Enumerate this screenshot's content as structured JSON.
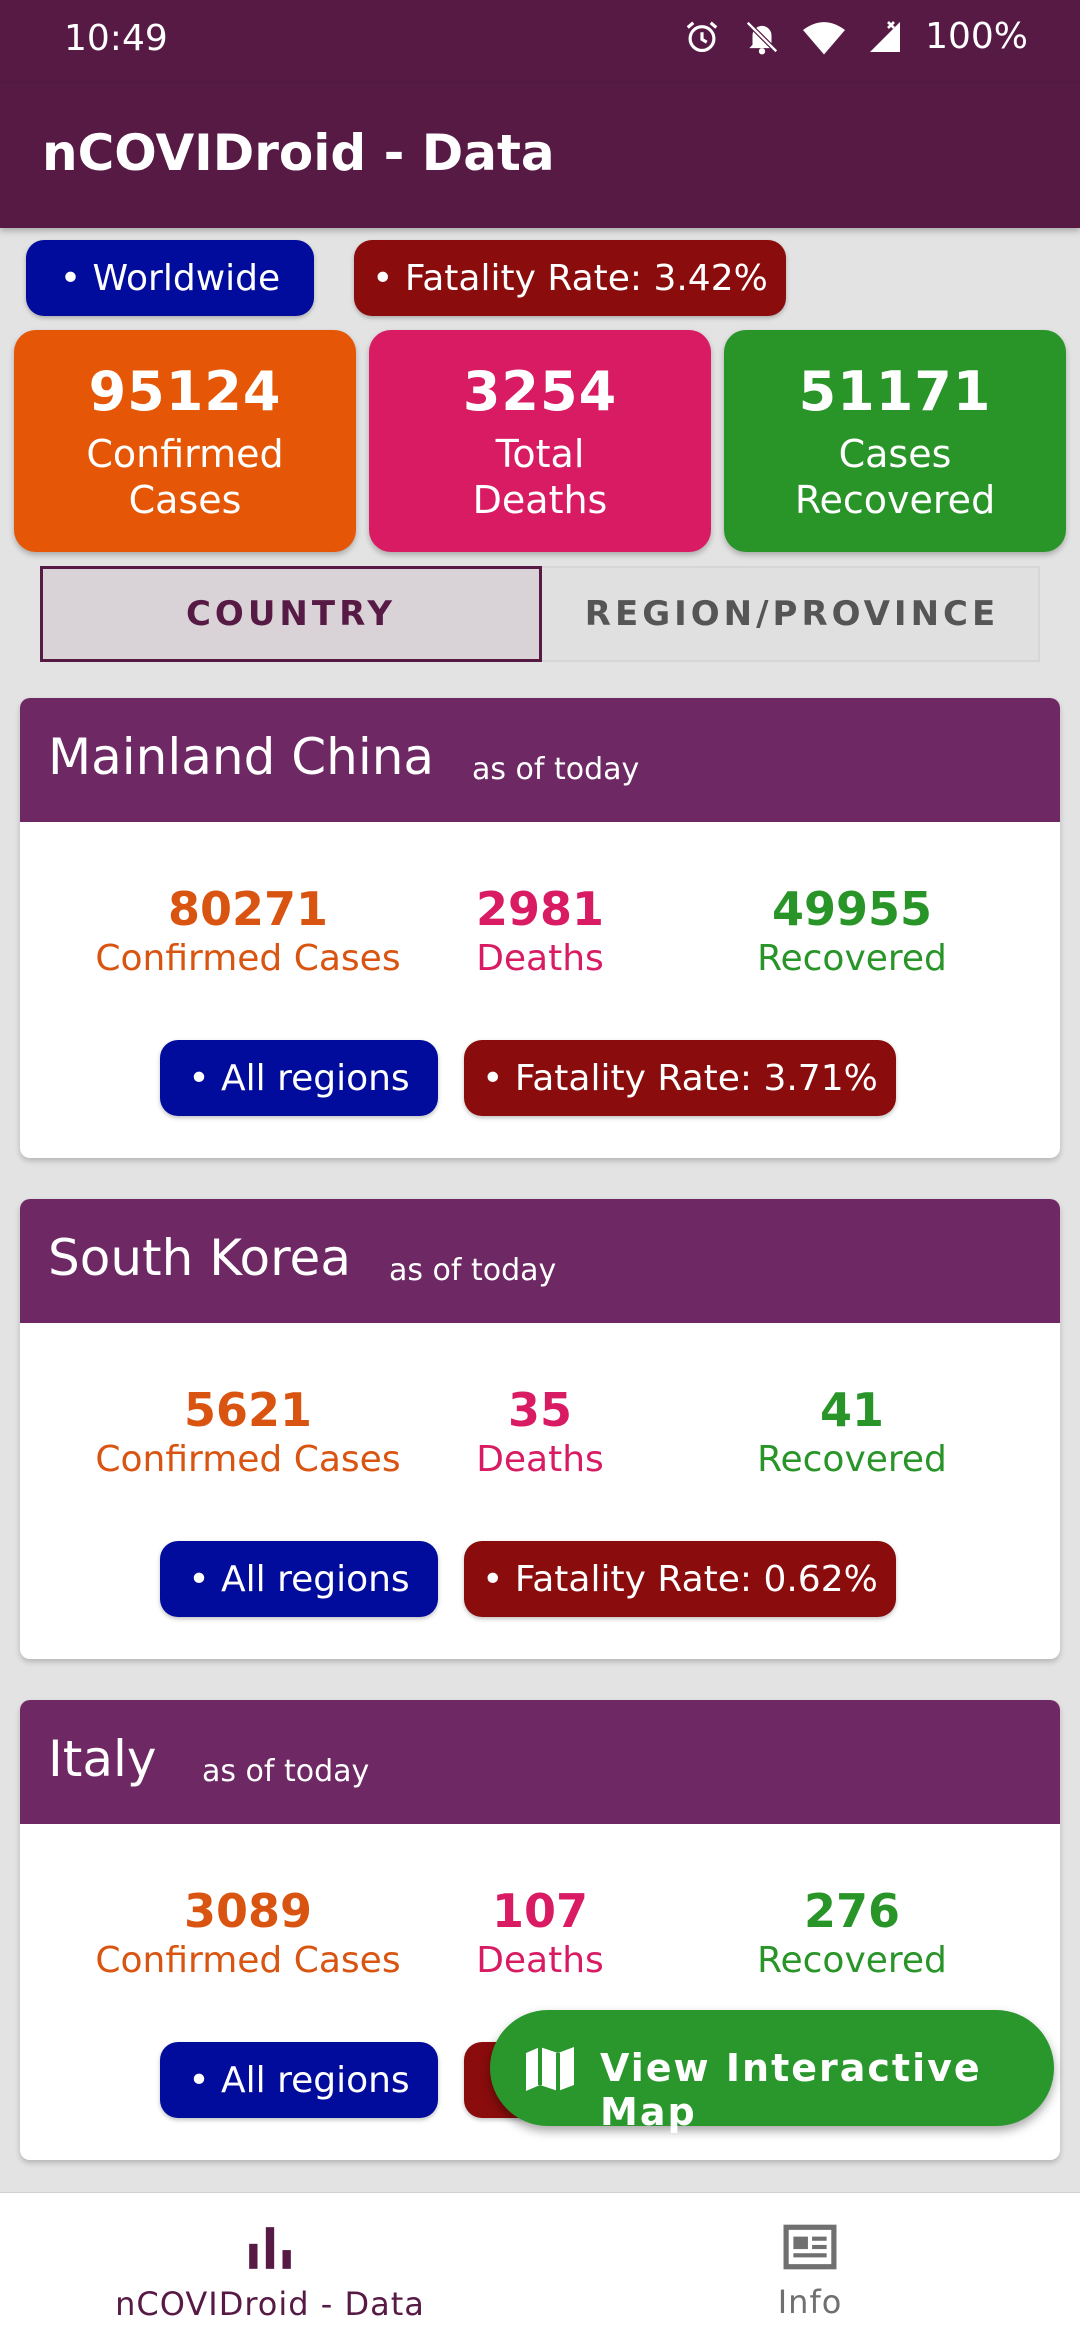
{
  "status_bar": {
    "time": "10:49",
    "battery": "100%"
  },
  "app": {
    "title": "nCOVIDroid - Data"
  },
  "global": {
    "scope_label": "• Worldwide",
    "fatality_label": "• Fatality Rate: 3.42%",
    "confirmed": "95124",
    "confirmed_label_1": "Confirmed",
    "confirmed_label_2": "Cases",
    "deaths": "3254",
    "deaths_label_1": "Total",
    "deaths_label_2": "Deaths",
    "recovered": "51171",
    "recovered_label_1": "Cases",
    "recovered_label_2": "Recovered"
  },
  "tabs": [
    {
      "label": "COUNTRY",
      "active": true
    },
    {
      "label": "REGION/PROVINCE",
      "active": false
    }
  ],
  "countries": [
    {
      "name": "Mainland China",
      "as_of": "as of today",
      "confirmed": "80271",
      "confirmed_label": "Confirmed Cases",
      "deaths": "2981",
      "deaths_label": "Deaths",
      "recovered": "49955",
      "recovered_label": "Recovered",
      "regions_label": "• All regions",
      "fatality_label": "• Fatality Rate: 3.71%"
    },
    {
      "name": "South Korea",
      "as_of": "as of today",
      "confirmed": "5621",
      "confirmed_label": "Confirmed Cases",
      "deaths": "35",
      "deaths_label": "Deaths",
      "recovered": "41",
      "recovered_label": "Recovered",
      "regions_label": "• All regions",
      "fatality_label": "• Fatality Rate: 0.62%"
    },
    {
      "name": "Italy",
      "as_of": "as of today",
      "confirmed": "3089",
      "confirmed_label": "Confirmed Cases",
      "deaths": "107",
      "deaths_label": "Deaths",
      "recovered": "276",
      "recovered_label": "Recovered",
      "regions_label": "• All regions",
      "fatality_label": ""
    }
  ],
  "fab": {
    "label": "View Interactive Map",
    "icon": "map-icon"
  },
  "bottom_nav": [
    {
      "label": "nCOVIDroid - Data",
      "icon": "bar-chart-icon",
      "active": true
    },
    {
      "label": "Info",
      "icon": "newspaper-icon",
      "active": false
    }
  ],
  "colors": {
    "primary": "#561a45",
    "card_header": "#6e2864",
    "confirmed": "#e55606",
    "deaths": "#d81b62",
    "recovered": "#299529",
    "chip_blue": "#020c9c",
    "chip_red": "#8a0c0c"
  }
}
